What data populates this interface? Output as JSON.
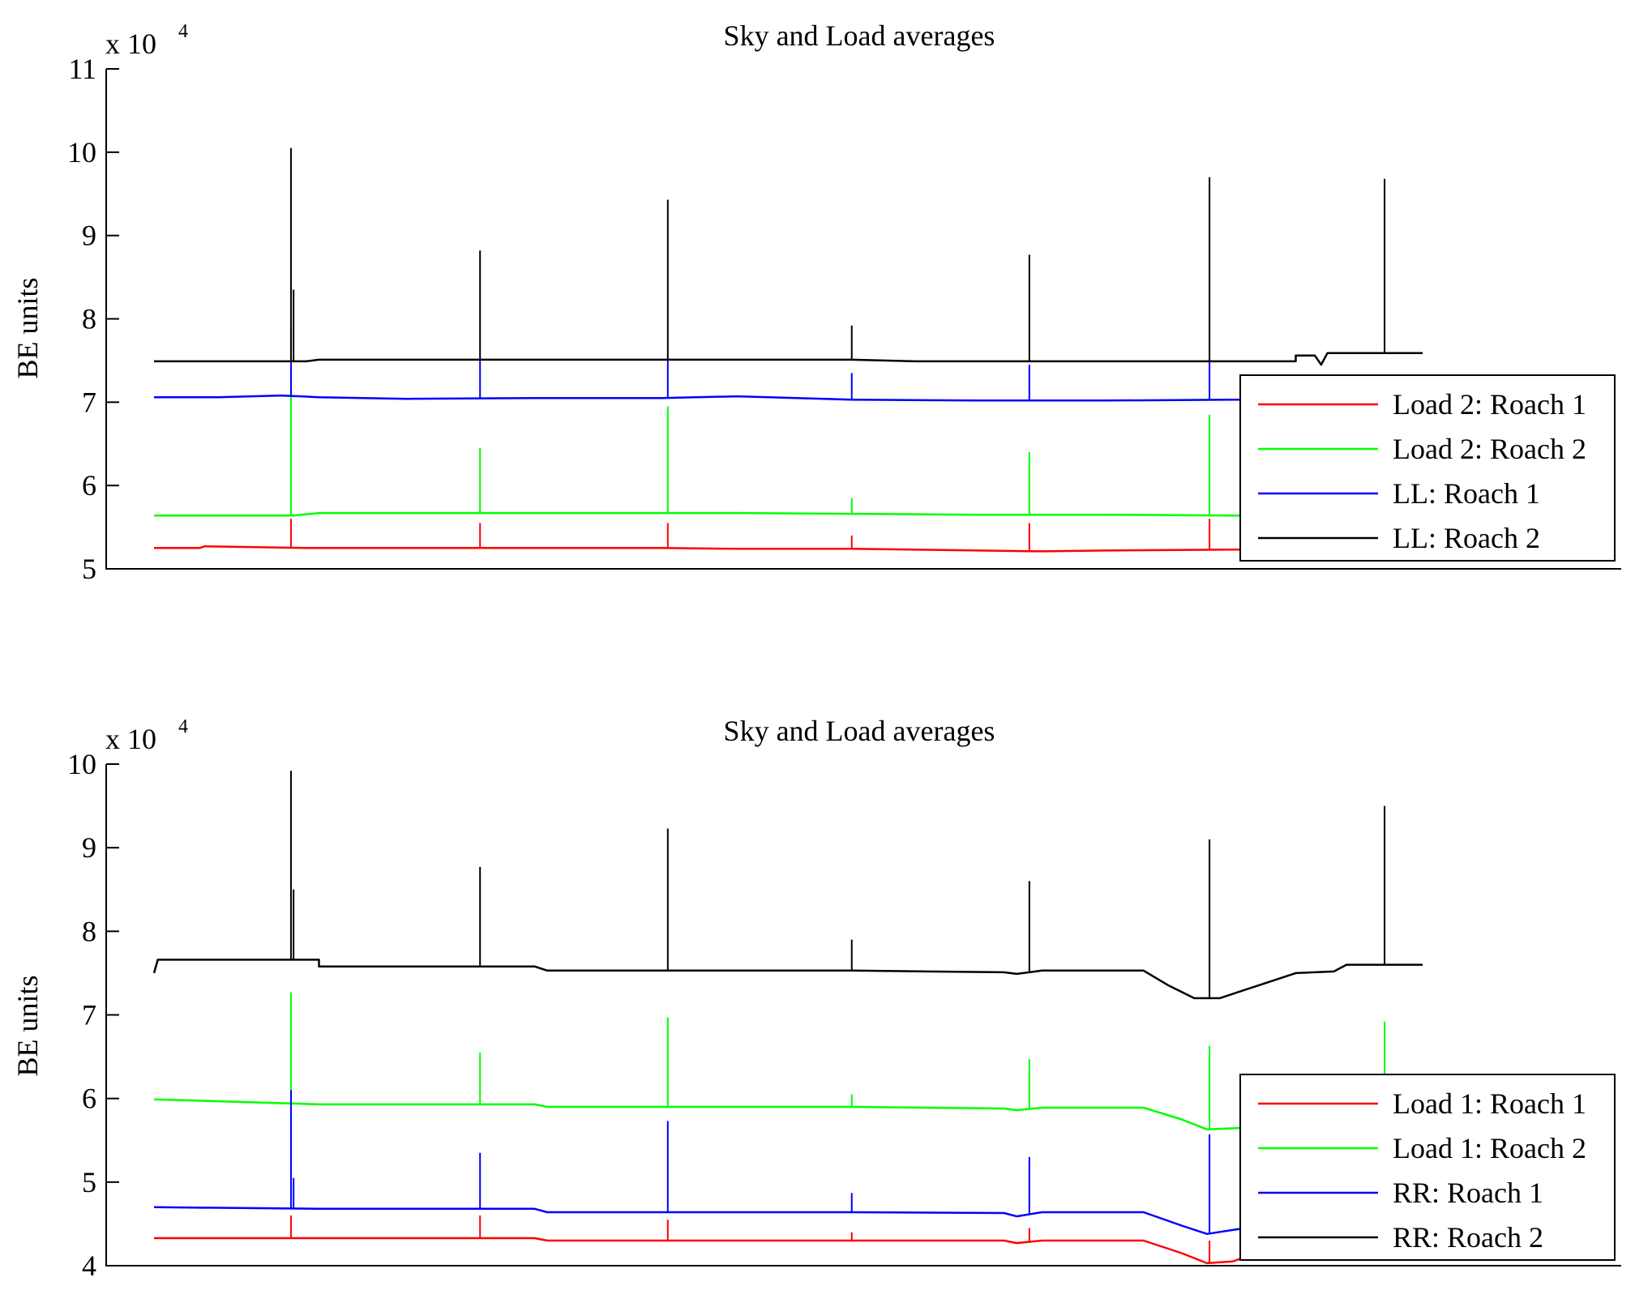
{
  "chart_data": [
    {
      "type": "line",
      "title": "Sky and Load averages",
      "xlabel": "",
      "ylabel": "BE units",
      "y_exponent_label": "x 10",
      "y_exponent": "4",
      "ylim": [
        5,
        11
      ],
      "yticks": [
        "5",
        "6",
        "7",
        "8",
        "9",
        "10",
        "11"
      ],
      "x_range": [
        0,
        1
      ],
      "xticks": [],
      "grid": false,
      "legend_position": "lower-right",
      "series": [
        {
          "name": "Load 2: Roach 1",
          "color": "#ff0000",
          "x": [
            0,
            0.036,
            0.04,
            0.08,
            0.12,
            0.3,
            0.4,
            0.46,
            0.55,
            0.65,
            0.7,
            0.75,
            0.85,
            0.86
          ],
          "y": [
            5.25,
            5.25,
            5.27,
            5.26,
            5.25,
            5.25,
            5.25,
            5.24,
            5.24,
            5.22,
            5.21,
            5.22,
            5.23,
            5.23
          ],
          "spikes": [
            {
              "x": 0.108,
              "y": 5.6
            },
            {
              "x": 0.257,
              "y": 5.55
            },
            {
              "x": 0.405,
              "y": 5.55
            },
            {
              "x": 0.55,
              "y": 5.4
            },
            {
              "x": 0.69,
              "y": 5.55
            },
            {
              "x": 0.832,
              "y": 5.6
            }
          ]
        },
        {
          "name": "Load 2: Roach 2",
          "color": "#00ff00",
          "x": [
            0,
            0.05,
            0.11,
            0.13,
            0.3,
            0.4,
            0.46,
            0.55,
            0.65,
            0.7,
            0.75,
            0.85,
            0.86
          ],
          "y": [
            5.64,
            5.64,
            5.64,
            5.67,
            5.67,
            5.67,
            5.67,
            5.66,
            5.65,
            5.65,
            5.65,
            5.64,
            5.64
          ],
          "spikes": [
            {
              "x": 0.108,
              "y": 7.2
            },
            {
              "x": 0.257,
              "y": 6.45
            },
            {
              "x": 0.405,
              "y": 6.95
            },
            {
              "x": 0.55,
              "y": 5.85
            },
            {
              "x": 0.69,
              "y": 6.4
            },
            {
              "x": 0.832,
              "y": 6.85
            }
          ]
        },
        {
          "name": "LL: Roach 1",
          "color": "#0000ff",
          "x": [
            0,
            0.05,
            0.1,
            0.13,
            0.2,
            0.3,
            0.4,
            0.46,
            0.55,
            0.65,
            0.75,
            0.85,
            0.86
          ],
          "y": [
            7.06,
            7.06,
            7.08,
            7.06,
            7.04,
            7.05,
            7.05,
            7.07,
            7.03,
            7.02,
            7.02,
            7.03,
            7.03
          ],
          "spikes": [
            {
              "x": 0.108,
              "y": 7.9
            },
            {
              "x": 0.257,
              "y": 7.5
            },
            {
              "x": 0.405,
              "y": 7.5
            },
            {
              "x": 0.55,
              "y": 7.35
            },
            {
              "x": 0.69,
              "y": 7.45
            },
            {
              "x": 0.832,
              "y": 7.5
            }
          ]
        },
        {
          "name": "LL: Roach 2",
          "color": "#000000",
          "x": [
            0,
            0.12,
            0.13,
            0.3,
            0.4,
            0.55,
            0.6,
            0.65,
            0.75,
            0.85,
            0.9,
            0.9,
            0.915,
            0.92,
            0.925,
            1.0
          ],
          "y": [
            7.49,
            7.49,
            7.51,
            7.51,
            7.51,
            7.51,
            7.49,
            7.49,
            7.49,
            7.49,
            7.49,
            7.56,
            7.56,
            7.45,
            7.59,
            7.59
          ],
          "spikes": [
            {
              "x": 0.108,
              "y": 10.05
            },
            {
              "x": 0.11,
              "y": 8.35
            },
            {
              "x": 0.257,
              "y": 8.82
            },
            {
              "x": 0.405,
              "y": 9.43
            },
            {
              "x": 0.55,
              "y": 7.92
            },
            {
              "x": 0.69,
              "y": 8.77
            },
            {
              "x": 0.832,
              "y": 9.7
            },
            {
              "x": 0.97,
              "y": 9.68
            }
          ]
        }
      ]
    },
    {
      "type": "line",
      "title": "Sky and Load averages",
      "xlabel": "",
      "ylabel": "BE units",
      "y_exponent_label": "x 10",
      "y_exponent": "4",
      "ylim": [
        4,
        10
      ],
      "yticks": [
        "4",
        "5",
        "6",
        "7",
        "8",
        "9",
        "10"
      ],
      "x_range": [
        0,
        1
      ],
      "xticks": [],
      "grid": false,
      "legend_position": "lower-right",
      "series": [
        {
          "name": "Load 1: Roach 1",
          "color": "#ff0000",
          "x": [
            0,
            0.13,
            0.3,
            0.31,
            0.55,
            0.67,
            0.68,
            0.7,
            0.78,
            0.81,
            0.83,
            0.85,
            0.86
          ],
          "y": [
            4.33,
            4.33,
            4.33,
            4.3,
            4.3,
            4.3,
            4.27,
            4.3,
            4.3,
            4.15,
            4.03,
            4.05,
            4.1
          ],
          "spikes": [
            {
              "x": 0.108,
              "y": 4.6
            },
            {
              "x": 0.257,
              "y": 4.6
            },
            {
              "x": 0.405,
              "y": 4.55
            },
            {
              "x": 0.55,
              "y": 4.4
            },
            {
              "x": 0.69,
              "y": 4.45
            },
            {
              "x": 0.832,
              "y": 4.3
            }
          ]
        },
        {
          "name": "Load 1: Roach 2",
          "color": "#00ff00",
          "x": [
            0,
            0.13,
            0.3,
            0.31,
            0.55,
            0.67,
            0.68,
            0.7,
            0.78,
            0.81,
            0.83,
            0.86,
            0.9,
            0.93,
            0.97,
            1.0
          ],
          "y": [
            5.99,
            5.93,
            5.93,
            5.9,
            5.9,
            5.88,
            5.86,
            5.89,
            5.89,
            5.75,
            5.63,
            5.65,
            5.75,
            5.85,
            5.9,
            5.9
          ],
          "spikes": [
            {
              "x": 0.108,
              "y": 7.27
            },
            {
              "x": 0.257,
              "y": 6.55
            },
            {
              "x": 0.405,
              "y": 6.97
            },
            {
              "x": 0.55,
              "y": 6.05
            },
            {
              "x": 0.69,
              "y": 6.47
            },
            {
              "x": 0.832,
              "y": 6.63
            },
            {
              "x": 0.97,
              "y": 6.92
            }
          ]
        },
        {
          "name": "RR: Roach 1",
          "color": "#0000ff",
          "x": [
            0,
            0.13,
            0.3,
            0.31,
            0.55,
            0.67,
            0.68,
            0.7,
            0.78,
            0.81,
            0.83,
            0.86
          ],
          "y": [
            4.7,
            4.68,
            4.68,
            4.64,
            4.64,
            4.63,
            4.59,
            4.64,
            4.64,
            4.48,
            4.38,
            4.45
          ],
          "spikes": [
            {
              "x": 0.108,
              "y": 6.1
            },
            {
              "x": 0.11,
              "y": 5.05
            },
            {
              "x": 0.257,
              "y": 5.35
            },
            {
              "x": 0.405,
              "y": 5.73
            },
            {
              "x": 0.55,
              "y": 4.87
            },
            {
              "x": 0.69,
              "y": 5.3
            },
            {
              "x": 0.832,
              "y": 5.57
            }
          ]
        },
        {
          "name": "RR: Roach 2",
          "color": "#000000",
          "x": [
            0,
            0.003,
            0.13,
            0.13,
            0.3,
            0.31,
            0.55,
            0.67,
            0.68,
            0.7,
            0.78,
            0.8,
            0.82,
            0.84,
            0.87,
            0.9,
            0.93,
            0.94,
            1.0
          ],
          "y": [
            7.5,
            7.66,
            7.66,
            7.58,
            7.58,
            7.53,
            7.53,
            7.51,
            7.49,
            7.53,
            7.53,
            7.35,
            7.2,
            7.2,
            7.35,
            7.5,
            7.52,
            7.6,
            7.6
          ],
          "spikes": [
            {
              "x": 0.108,
              "y": 9.92
            },
            {
              "x": 0.11,
              "y": 8.5
            },
            {
              "x": 0.257,
              "y": 8.77
            },
            {
              "x": 0.405,
              "y": 9.23
            },
            {
              "x": 0.55,
              "y": 7.9
            },
            {
              "x": 0.69,
              "y": 8.6
            },
            {
              "x": 0.832,
              "y": 9.1
            },
            {
              "x": 0.97,
              "y": 9.5
            }
          ]
        }
      ]
    }
  ]
}
